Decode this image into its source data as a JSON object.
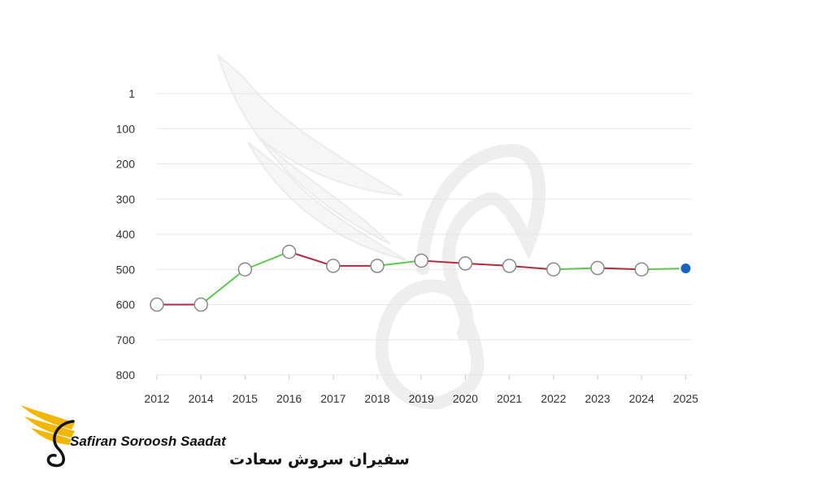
{
  "brand": {
    "name_en": "Safiran Soroosh Saadat",
    "name_fa": "سفیران سروش سعادت",
    "accent_color": "#f2b705"
  },
  "colors": {
    "rise": "#5cc94f",
    "fall": "#b5283d",
    "flat": "#b5283d",
    "marker_fill": "#ffffff",
    "marker_stroke": "#888888",
    "latest_marker": "#1565c0",
    "grid": "#e6e6e6"
  },
  "chart_data": {
    "type": "line",
    "title": "",
    "xlabel": "",
    "ylabel": "",
    "categories": [
      "2012",
      "2014",
      "2015",
      "2016",
      "2017",
      "2018",
      "2019",
      "2020",
      "2021",
      "2022",
      "2023",
      "2024",
      "2025"
    ],
    "values": [
      600,
      600,
      500,
      450,
      490,
      490,
      475,
      483,
      490,
      500,
      496,
      500,
      497
    ],
    "y_ticks": [
      "1",
      "100",
      "200",
      "300",
      "400",
      "500",
      "600",
      "700",
      "800"
    ],
    "ylim": [
      1,
      800
    ],
    "y_inverted": true,
    "grid": true,
    "segment_coloring": "green when the value rises, red when it falls or holds",
    "highlight_last_point": true
  }
}
